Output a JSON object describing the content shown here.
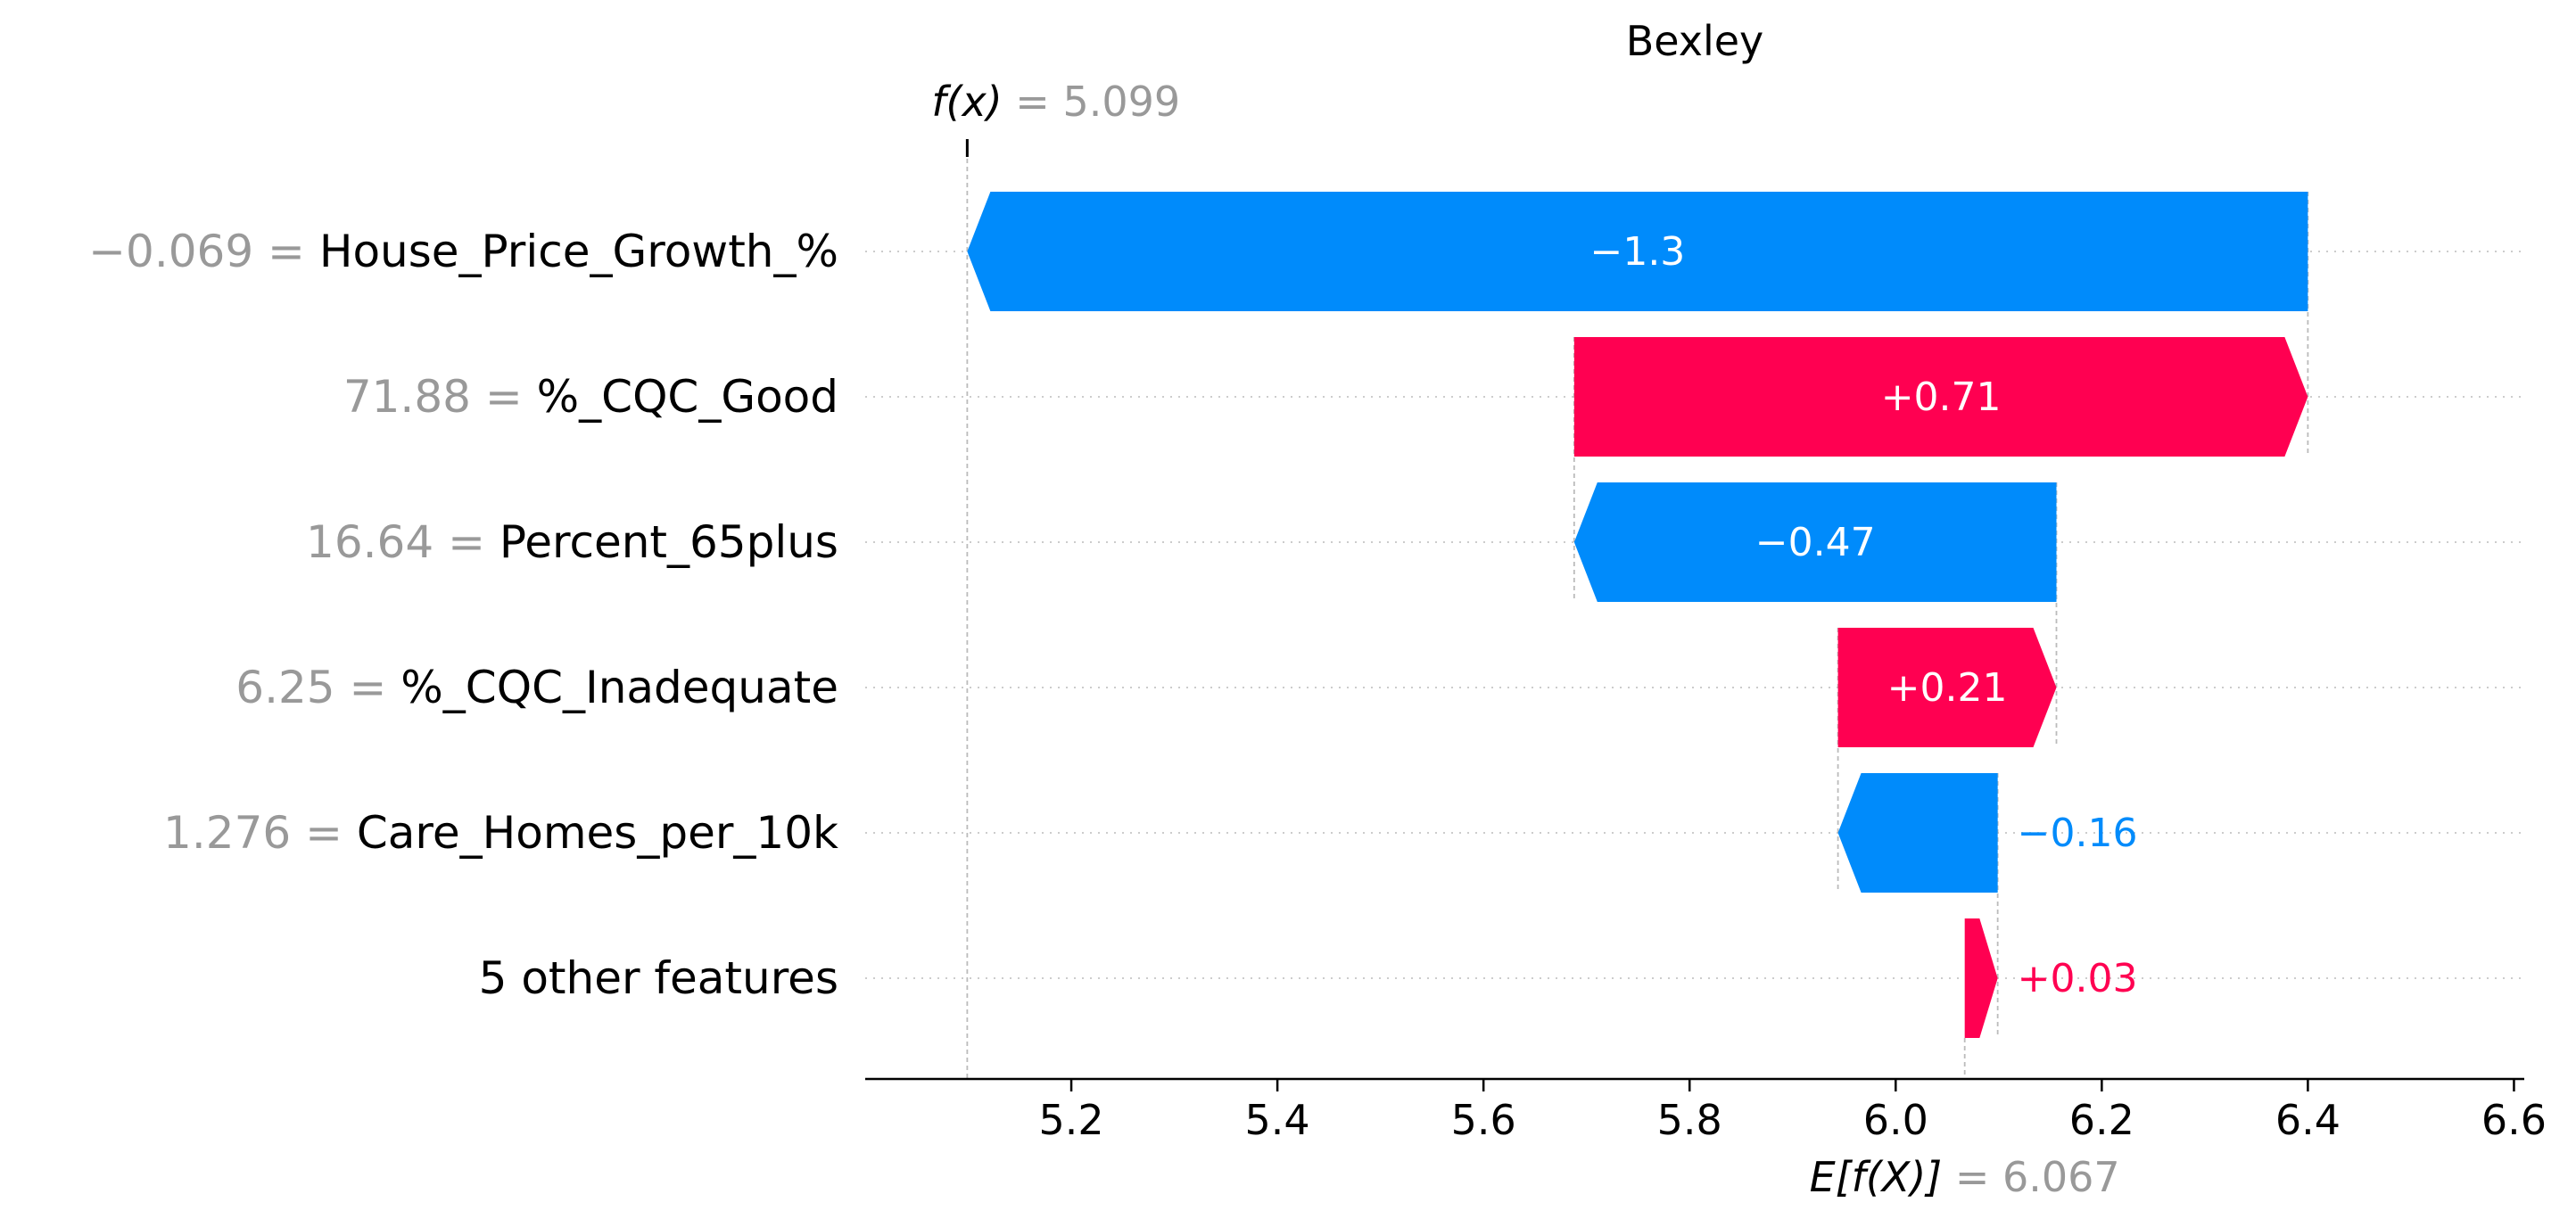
{
  "chart_data": {
    "type": "bar",
    "title": "Bexley",
    "fx_label": "f(x)",
    "fx_value": "5.099",
    "fx": 5.099,
    "base_label": "E[f(X)]",
    "base_value_text": "6.067",
    "base": 6.067,
    "xlim": [
      5.0,
      6.61
    ],
    "x_ticks": [
      5.2,
      5.4,
      5.6,
      5.8,
      6.0,
      6.2,
      6.4,
      6.6
    ],
    "x_tick_labels": [
      "5.2",
      "5.4",
      "5.6",
      "5.8",
      "6.0",
      "6.2",
      "6.4",
      "6.6"
    ],
    "colors": {
      "positive": "#ff0051",
      "negative": "#008bfb",
      "gray_text": "#999999",
      "text": "#000000",
      "grid": "#cccccc"
    },
    "features": [
      {
        "value_text": "−0.069",
        "name": "House_Price_Growth_%",
        "contribution": -1.3,
        "label": "−1.3",
        "start": 6.4,
        "end": 5.099
      },
      {
        "value_text": "71.88",
        "name": "%_CQC_Good",
        "contribution": 0.71,
        "label": "+0.71",
        "start": 5.688,
        "end": 6.4
      },
      {
        "value_text": "16.64",
        "name": "Percent_65plus",
        "contribution": -0.47,
        "label": "−0.47",
        "start": 6.156,
        "end": 5.688
      },
      {
        "value_text": "6.25",
        "name": "%_CQC_Inadequate",
        "contribution": 0.21,
        "label": "+0.21",
        "start": 5.944,
        "end": 6.156
      },
      {
        "value_text": "1.276",
        "name": "Care_Homes_per_10k",
        "contribution": -0.16,
        "label": "−0.16",
        "start": 6.099,
        "end": 5.944
      },
      {
        "value_text": "",
        "name": "5 other features",
        "contribution": 0.03,
        "label": "+0.03",
        "start": 6.067,
        "end": 6.099
      }
    ]
  }
}
